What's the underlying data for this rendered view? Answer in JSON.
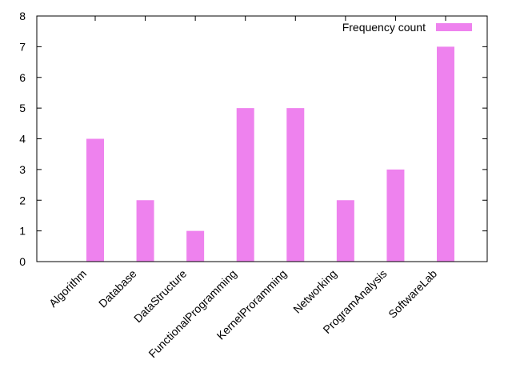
{
  "chart_data": {
    "type": "bar",
    "categories": [
      "Algorithm",
      "Database",
      "DataStructure",
      "FunctionalProgramming",
      "KernelProramming",
      "Networking",
      "ProgramAnalysis",
      "SoftwareLab"
    ],
    "series": [
      {
        "name": "Frequency count",
        "values": [
          4,
          2,
          1,
          5,
          5,
          2,
          3,
          7
        ],
        "color": "#ee82ee"
      }
    ],
    "title": "",
    "xlabel": "",
    "ylabel": "",
    "ylim": [
      0,
      8
    ],
    "yticks": [
      "0",
      "1",
      "2",
      "3",
      "4",
      "5",
      "6",
      "7",
      "8"
    ],
    "grid": false,
    "legend_position": "top-right"
  }
}
